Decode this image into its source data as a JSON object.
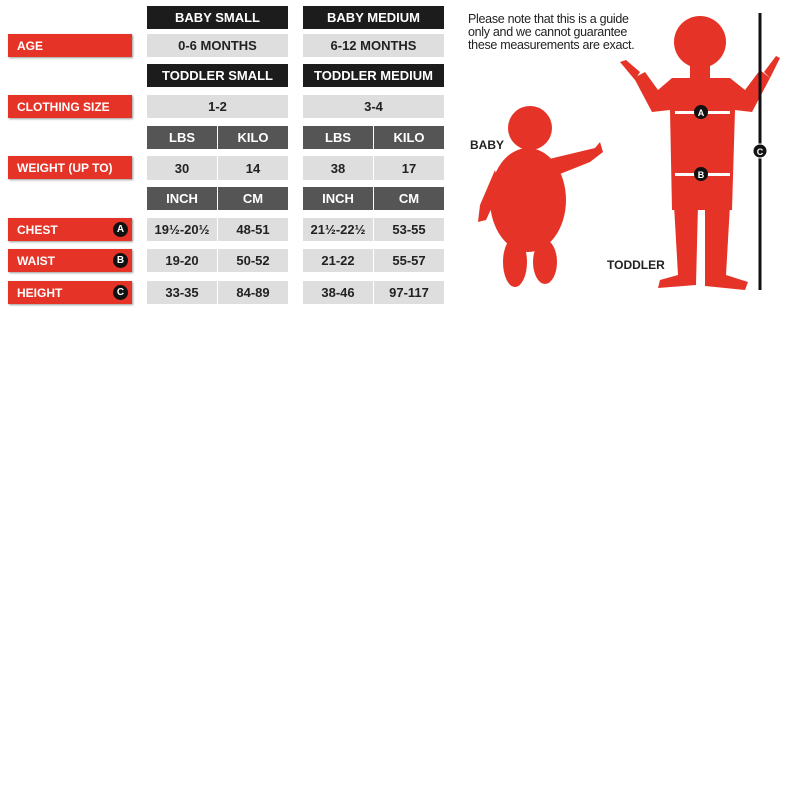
{
  "colors": {
    "label_red": "#e53427",
    "header_black": "#1c1c1c",
    "subheader_gray": "#555555",
    "cell_gray": "#dedede"
  },
  "row_labels": {
    "age": "AGE",
    "clothing_size": "CLOTHING SIZE",
    "weight": "WEIGHT (UP TO)",
    "chest": "CHEST",
    "waist": "WAIST",
    "height": "HEIGHT"
  },
  "badges": {
    "chest": "A",
    "waist": "B",
    "height": "C"
  },
  "headers": {
    "baby_small": "BABY SMALL",
    "baby_medium": "BABY MEDIUM",
    "toddler_small": "TODDLER SMALL",
    "toddler_medium": "TODDLER MEDIUM"
  },
  "units": {
    "lbs": "LBS",
    "kilo": "KILO",
    "inch": "INCH",
    "cm": "CM"
  },
  "values": {
    "age": [
      "0-6 MONTHS",
      "6-12 MONTHS"
    ],
    "clothing_size": [
      "1-2",
      "3-4"
    ],
    "weight": [
      "30",
      "14",
      "38",
      "17"
    ],
    "chest": [
      "19½-20½",
      "48-51",
      "21½-22½",
      "53-55"
    ],
    "waist": [
      "19-20",
      "50-52",
      "21-22",
      "55-57"
    ],
    "height": [
      "33-35",
      "84-89",
      "38-46",
      "97-117"
    ]
  },
  "note": "Please note that this is a guide only and we cannot guarantee these measurements are exact.",
  "figures": {
    "baby": "BABY",
    "toddler": "TODDLER",
    "markers": [
      "A",
      "B",
      "C"
    ]
  }
}
